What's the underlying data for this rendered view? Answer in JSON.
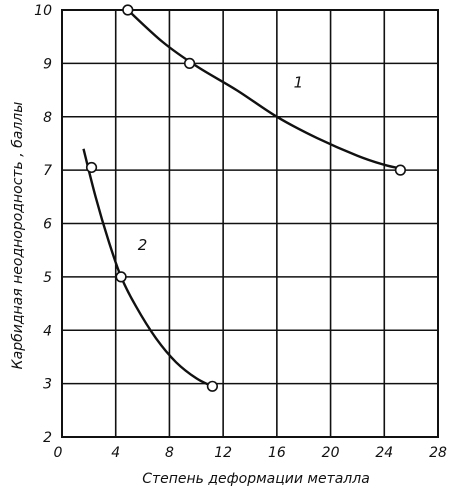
{
  "chart_data": {
    "type": "line",
    "xlabel": "Степень деформации металла",
    "ylabel": "Карбидная неоднородность , баллы",
    "xlim": [
      0,
      28
    ],
    "ylim": [
      2,
      10
    ],
    "x_ticks": [
      "0",
      "4",
      "8",
      "12",
      "16",
      "20",
      "24",
      "28"
    ],
    "y_ticks": [
      "2",
      "3",
      "4",
      "5",
      "6",
      "7",
      "8",
      "9",
      "10"
    ],
    "grid": true,
    "series": [
      {
        "name": "1",
        "points": [
          [
            4.9,
            10.0
          ],
          [
            9.5,
            9.0
          ],
          [
            25.2,
            7.0
          ]
        ],
        "curve": [
          [
            4.9,
            10.0
          ],
          [
            7.5,
            9.4
          ],
          [
            10.0,
            8.95
          ],
          [
            13.0,
            8.5
          ],
          [
            16.0,
            8.0
          ],
          [
            19.0,
            7.6
          ],
          [
            22.0,
            7.27
          ],
          [
            24.0,
            7.1
          ],
          [
            25.4,
            7.02
          ]
        ]
      },
      {
        "name": "2",
        "points": [
          [
            2.2,
            7.05
          ],
          [
            4.4,
            5.0
          ],
          [
            11.2,
            2.95
          ]
        ],
        "curve": [
          [
            1.6,
            7.4
          ],
          [
            2.5,
            6.5
          ],
          [
            3.5,
            5.65
          ],
          [
            4.4,
            5.0
          ],
          [
            5.5,
            4.45
          ],
          [
            7.0,
            3.85
          ],
          [
            8.5,
            3.4
          ],
          [
            10.0,
            3.1
          ],
          [
            11.2,
            2.95
          ]
        ]
      }
    ]
  }
}
